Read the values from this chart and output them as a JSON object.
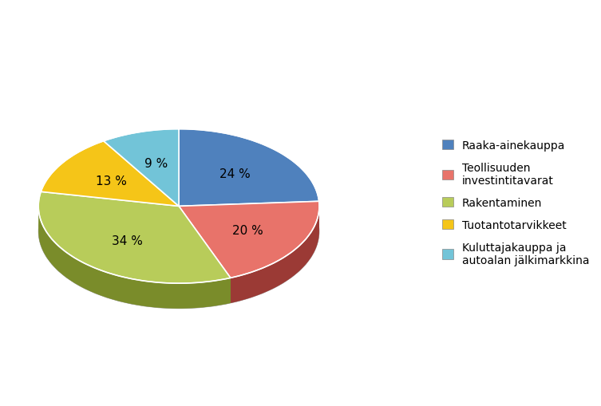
{
  "labels": [
    "Raaka-ainekauppa",
    "Teollisuuden\ninvestintitavarat",
    "Rakentaminen",
    "Tuotantotarvikkeet",
    "Kuluttajakauppa ja\nautoalan jälkimarkkina"
  ],
  "values": [
    24,
    20,
    34,
    13,
    9
  ],
  "colors": [
    "#4f81bd",
    "#e8736a",
    "#b8cc5a",
    "#f5c518",
    "#72c4d8"
  ],
  "shadow_colors": [
    "#2e5d8e",
    "#9b3a35",
    "#7a8c2a",
    "#b89010",
    "#3a8aa0"
  ],
  "pct_labels": [
    "24 %",
    "20 %",
    "34 %",
    "13 %",
    "9 %"
  ],
  "legend_labels": [
    "Raaka-ainekauppa",
    "Teollisuuden\ninvestintitavarat",
    "Rakentaminen",
    "Tuotantotarvikkeet",
    "Kuluttajakauppa ja\nautoalan jälkimarkkina"
  ],
  "background_color": "#ffffff",
  "font_size": 11,
  "legend_font_size": 10,
  "start_angle": 90,
  "yscale": 0.55,
  "depth": 0.18
}
